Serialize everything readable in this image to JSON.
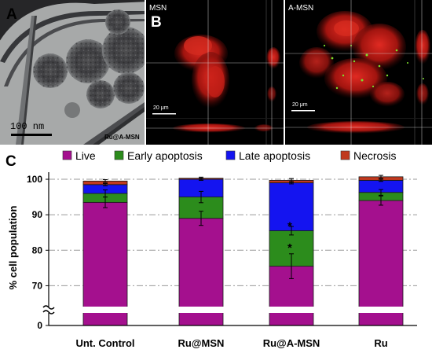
{
  "panel_a": {
    "letter": "A",
    "scale_bar": "100 nm",
    "sample_label": "Ru@A-MSN"
  },
  "panel_b": {
    "letter": "B",
    "left_label": "MSN",
    "right_label": "A-MSN",
    "left_scale": "20 μm",
    "right_scale": "20 μm"
  },
  "panel_c": {
    "letter": "C"
  },
  "colors": {
    "live": "#a4108e",
    "early": "#2c8c1c",
    "late": "#1414f0",
    "necrosis": "#c0391e"
  },
  "chart_data": {
    "type": "bar",
    "stacked": true,
    "categories": [
      "Unt. Control",
      "Ru@MSN",
      "Ru@A-MSN",
      "Ru"
    ],
    "series": [
      {
        "name": "Live",
        "values": [
          93.5,
          89,
          75.5,
          94
        ]
      },
      {
        "name": "Early apoptosis",
        "values": [
          2.5,
          6,
          10,
          2.3
        ]
      },
      {
        "name": "Late apoptosis",
        "values": [
          2.5,
          5,
          13.5,
          3.4
        ]
      },
      {
        "name": "Necrosis",
        "values": [
          1,
          0.3,
          0.7,
          1
        ]
      }
    ],
    "error_tops": [
      [
        1.5,
        2,
        3.5,
        1.3
      ],
      [
        1.0,
        1.6,
        1.2,
        0.8
      ],
      [
        0.3,
        0.3,
        0.3,
        0.3
      ],
      [
        0.4,
        0.3,
        0.5,
        0.4
      ]
    ],
    "markers": [
      {
        "category": "Ru@A-MSN",
        "values": [
          81,
          87
        ],
        "symbol": "*"
      }
    ],
    "ylabel": "% cell population",
    "yticks": [
      0,
      70,
      80,
      90,
      100
    ],
    "ylim": [
      65,
      102
    ],
    "axis_break": true,
    "grid": "dash-dot horizontal",
    "legend_position": "top"
  }
}
